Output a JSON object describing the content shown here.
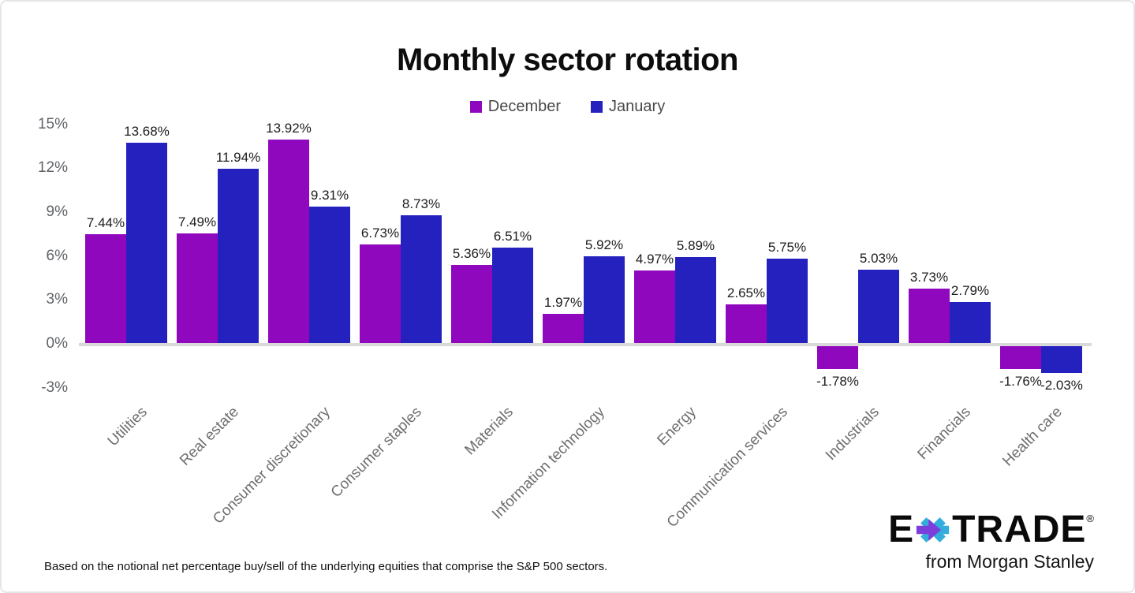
{
  "title": "Monthly sector rotation",
  "chart_data": {
    "type": "bar",
    "categories": [
      "Utilities",
      "Real estate",
      "Consumer discretionary",
      "Consumer staples",
      "Materials",
      "Information technology",
      "Energy",
      "Communication services",
      "Industrials",
      "Financials",
      "Health care"
    ],
    "series": [
      {
        "name": "December",
        "color": "#9008be",
        "values": [
          7.44,
          7.49,
          13.92,
          6.73,
          5.36,
          1.97,
          4.97,
          2.65,
          -1.78,
          3.73,
          -1.76
        ],
        "labels": [
          "7.44%",
          "7.49%",
          "13.92%",
          "6.73%",
          "5.36%",
          "1.97%",
          "4.97%",
          "2.65%",
          "-1.78%",
          "3.73%",
          "-1.76%"
        ]
      },
      {
        "name": "January",
        "color": "#2521be",
        "values": [
          13.68,
          11.94,
          9.31,
          8.73,
          6.51,
          5.92,
          5.89,
          5.75,
          5.03,
          2.79,
          -2.03
        ],
        "labels": [
          "13.68%",
          "11.94%",
          "9.31%",
          "8.73%",
          "6.51%",
          "5.92%",
          "5.89%",
          "5.75%",
          "5.03%",
          "2.79%",
          "-2.03%"
        ]
      }
    ],
    "yticks": [
      {
        "value": 15,
        "label": "15%"
      },
      {
        "value": 12,
        "label": "12%"
      },
      {
        "value": 9,
        "label": "9%"
      },
      {
        "value": 6,
        "label": "6%"
      },
      {
        "value": 3,
        "label": "3%"
      },
      {
        "value": 0,
        "label": "0%"
      },
      {
        "value": -3,
        "label": "-3%"
      }
    ],
    "ylim": [
      -3.5,
      15
    ],
    "grid": false,
    "legend_position": "top",
    "xlabel": "",
    "ylabel": ""
  },
  "footnote": "Based on the notional net percentage buy/sell of the underlying equities that comprise the S&P 500 sectors.",
  "logo": {
    "brand_e": "E",
    "brand_trade": "TRADE",
    "registered": "®",
    "tagline": "from Morgan Stanley",
    "asterisk_purple": "#7b3edb",
    "asterisk_cyan": "#33aedc"
  }
}
